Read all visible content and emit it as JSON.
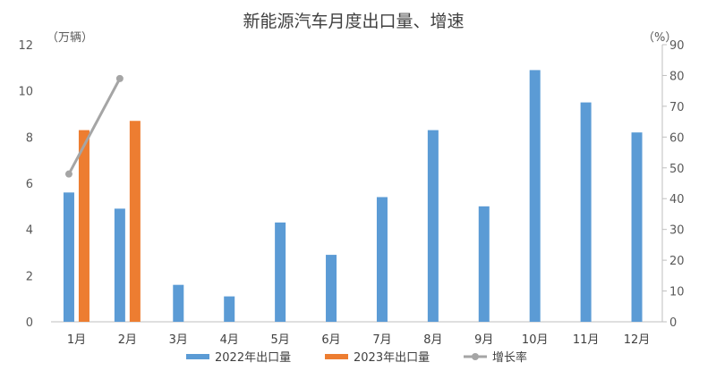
{
  "chart_data": {
    "type": "bar",
    "title": "新能源汽车月度出口量、增速",
    "y_left_unit": "（万辆）",
    "y_right_unit": "（%）",
    "categories": [
      "1月",
      "2月",
      "3月",
      "4月",
      "5月",
      "6月",
      "7月",
      "8月",
      "9月",
      "10月",
      "11月",
      "12月"
    ],
    "y_left_ticks": [
      "0",
      "2",
      "4",
      "6",
      "8",
      "10",
      "12"
    ],
    "y_right_ticks": [
      "0",
      "10",
      "20",
      "30",
      "40",
      "50",
      "60",
      "70",
      "80",
      "90"
    ],
    "ylim_left": [
      0,
      12
    ],
    "ylim_right": [
      0,
      90
    ],
    "series": [
      {
        "name": "2022年出口量",
        "kind": "bar",
        "axis": "left",
        "color": "#5b9bd5",
        "values": [
          5.6,
          4.9,
          1.6,
          1.1,
          4.3,
          2.9,
          5.4,
          8.3,
          5.0,
          10.9,
          9.5,
          8.2
        ]
      },
      {
        "name": "2023年出口量",
        "kind": "bar",
        "axis": "left",
        "color": "#ed7d31",
        "values": [
          8.3,
          8.7,
          null,
          null,
          null,
          null,
          null,
          null,
          null,
          null,
          null,
          null
        ]
      },
      {
        "name": "增长率",
        "kind": "line",
        "axis": "right",
        "color": "#a5a5a5",
        "values": [
          48,
          79,
          null,
          null,
          null,
          null,
          null,
          null,
          null,
          null,
          null,
          null
        ]
      }
    ],
    "grid": false,
    "legend_position": "bottom"
  }
}
